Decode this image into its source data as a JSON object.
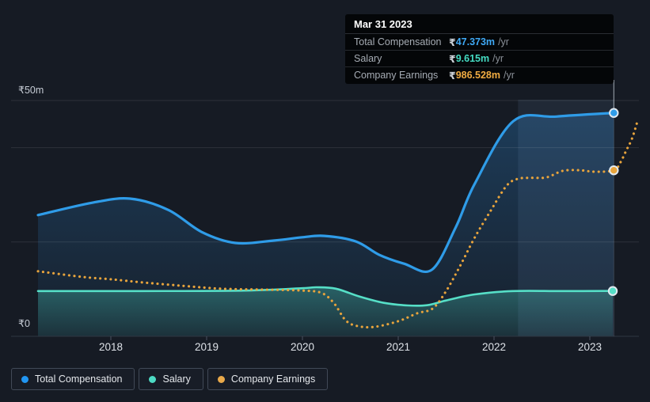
{
  "tooltip": {
    "date": "Mar 31 2023",
    "rows": [
      {
        "label": "Total Compensation",
        "currency": "₹",
        "amount": "47.373m",
        "suffix": "/yr",
        "color": "#3fa9f5"
      },
      {
        "label": "Salary",
        "currency": "₹",
        "amount": "9.615m",
        "suffix": "/yr",
        "color": "#45dcc3"
      },
      {
        "label": "Company Earnings",
        "currency": "₹",
        "amount": "986.528m",
        "suffix": "/yr",
        "color": "#f0ab42"
      }
    ]
  },
  "legend": [
    {
      "label": "Total Compensation",
      "color": "#2196f3"
    },
    {
      "label": "Salary",
      "color": "#4ddbc4"
    },
    {
      "label": "Company Earnings",
      "color": "#e9a94a"
    }
  ],
  "chart_data": {
    "type": "line",
    "title": "",
    "x_axis": {
      "ticks": [
        2018,
        2019,
        2020,
        2021,
        2022,
        2023
      ],
      "labels": [
        "2018",
        "2019",
        "2020",
        "2021",
        "2022",
        "2023"
      ],
      "range": [
        2017.2,
        2023.55
      ]
    },
    "y_axis": {
      "label_top": "₹50m",
      "label_zero": "₹0",
      "unit": "₹m",
      "range": [
        0,
        50
      ],
      "gridline_values": [
        50,
        40,
        20
      ]
    },
    "highlight_band": {
      "x_start": 2022.25,
      "x_end": 2023.25
    },
    "cursor_x": 2023.25,
    "note": "Company Earnings is drawn on its own hidden scale (latest value ₹986.528m/yr per tooltip); its point values below are readings against the visible ₹0–₹50m axis.",
    "series": [
      {
        "name": "Total Compensation",
        "color": "#2f9ce8",
        "style": "solid",
        "area": true,
        "points": [
          [
            2017.24,
            25.7
          ],
          [
            2017.8,
            28.3
          ],
          [
            2018.2,
            29.2
          ],
          [
            2018.6,
            26.8
          ],
          [
            2018.95,
            22.1
          ],
          [
            2019.3,
            19.8
          ],
          [
            2019.7,
            20.3
          ],
          [
            2020.0,
            21.0
          ],
          [
            2020.23,
            21.3
          ],
          [
            2020.56,
            20.1
          ],
          [
            2020.8,
            17.3
          ],
          [
            2021.06,
            15.4
          ],
          [
            2021.35,
            14.1
          ],
          [
            2021.6,
            23.1
          ],
          [
            2021.8,
            32.4
          ],
          [
            2022.2,
            45.6
          ],
          [
            2022.65,
            46.6
          ],
          [
            2023.25,
            47.373
          ]
        ]
      },
      {
        "name": "Salary",
        "color": "#56dfc7",
        "style": "solid",
        "area": true,
        "points": [
          [
            2017.24,
            9.6
          ],
          [
            2018.3,
            9.6
          ],
          [
            2019.4,
            9.7
          ],
          [
            2020.0,
            10.2
          ],
          [
            2020.15,
            10.4
          ],
          [
            2020.35,
            10.1
          ],
          [
            2020.6,
            8.4
          ],
          [
            2020.85,
            7.1
          ],
          [
            2021.1,
            6.55
          ],
          [
            2021.3,
            6.6
          ],
          [
            2021.5,
            7.6
          ],
          [
            2021.8,
            8.9
          ],
          [
            2022.2,
            9.6
          ],
          [
            2022.7,
            9.6
          ],
          [
            2023.24,
            9.615
          ]
        ]
      },
      {
        "name": "Company Earnings",
        "color": "#e8a43c",
        "style": "dotted",
        "area": false,
        "points": [
          [
            2017.24,
            13.8
          ],
          [
            2017.7,
            12.6
          ],
          [
            2018.0,
            12.1
          ],
          [
            2018.35,
            11.4
          ],
          [
            2018.75,
            10.7
          ],
          [
            2019.15,
            10.1
          ],
          [
            2019.6,
            9.9
          ],
          [
            2020.0,
            9.7
          ],
          [
            2020.2,
            9.2
          ],
          [
            2020.33,
            7.0
          ],
          [
            2020.45,
            3.4
          ],
          [
            2020.57,
            2.2
          ],
          [
            2020.75,
            2.0
          ],
          [
            2021.0,
            3.2
          ],
          [
            2021.2,
            4.9
          ],
          [
            2021.36,
            5.9
          ],
          [
            2021.5,
            9.6
          ],
          [
            2021.65,
            15.1
          ],
          [
            2021.8,
            21.0
          ],
          [
            2021.97,
            26.8
          ],
          [
            2022.13,
            31.9
          ],
          [
            2022.25,
            33.4
          ],
          [
            2022.4,
            33.6
          ],
          [
            2022.55,
            33.7
          ],
          [
            2022.72,
            35.1
          ],
          [
            2022.9,
            35.2
          ],
          [
            2023.05,
            34.9
          ],
          [
            2023.25,
            35.2
          ],
          [
            2023.32,
            36.9
          ],
          [
            2023.38,
            39.4
          ],
          [
            2023.44,
            41.9
          ],
          [
            2023.5,
            45.8
          ]
        ]
      }
    ],
    "markers": [
      {
        "series": "Total Compensation",
        "x": 2023.25,
        "y": 47.373,
        "color": "#2f9ce8"
      },
      {
        "series": "Salary",
        "x": 2023.24,
        "y": 9.615,
        "color": "#56dfc7"
      },
      {
        "series": "Company Earnings",
        "x": 2023.25,
        "y": 35.2,
        "color": "#e8a43c"
      }
    ]
  }
}
